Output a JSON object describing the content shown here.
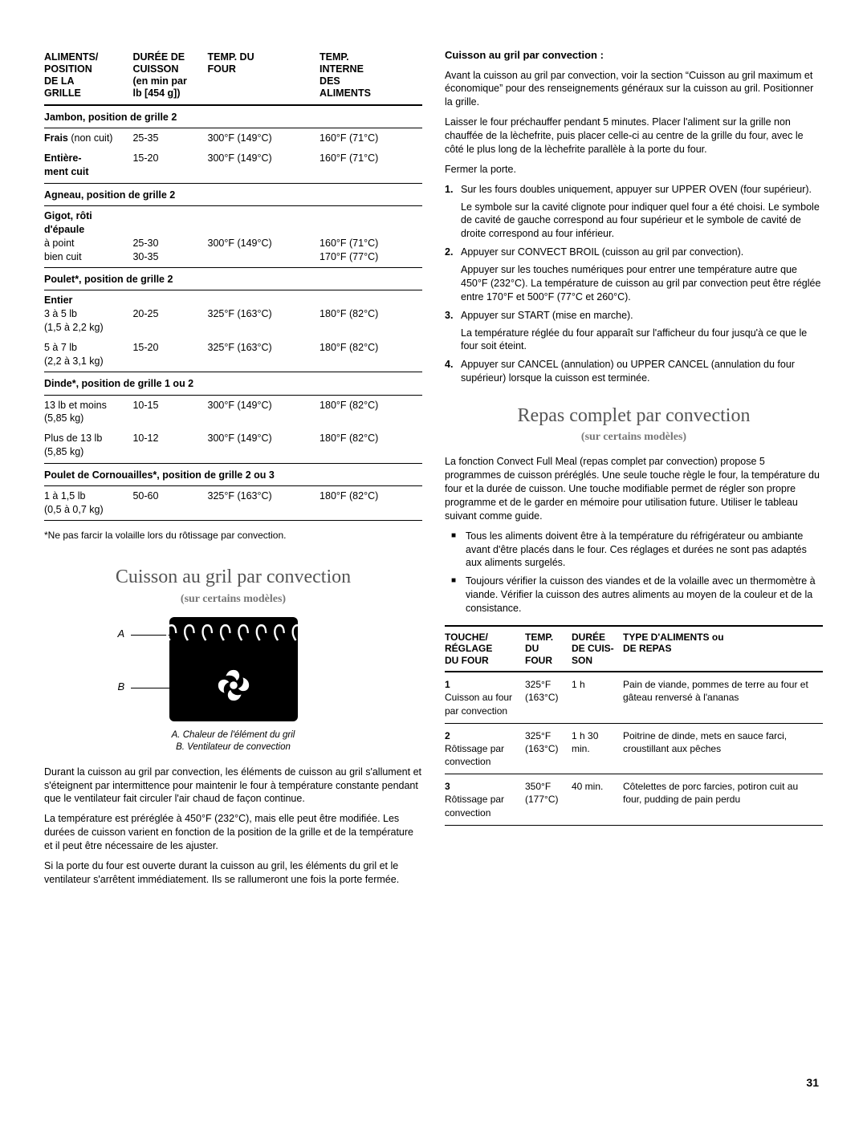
{
  "table1": {
    "headers": {
      "c0": "ALIMENTS/\nPOSITION\nDE LA\nGRILLE",
      "c1": "DURÉE DE\nCUISSON\n(en min par\nlb [454 g])",
      "c2": "TEMP. DU\nFOUR",
      "c3": "TEMP.\nINTERNE\nDES\nALIMENTS"
    },
    "sections": [
      {
        "title": "Jambon, position de grille 2",
        "rows": [
          {
            "c0": "<b>Frais</b> (non cuit)",
            "c1": "25-35",
            "c2": "300°F (149°C)",
            "c3": "160°F (71°C)"
          },
          {
            "c0": "<b>Entière-<br>ment cuit</b>",
            "c1": "15-20",
            "c2": "300°F (149°C)",
            "c3": "160°F (71°C)"
          }
        ]
      },
      {
        "title": "Agneau, position de grille 2",
        "rows": [
          {
            "c0": "<b>Gigot, rôti d'épaule</b><br>à point<br>bien cuit",
            "c1": "<br><br>25-30<br>30-35",
            "c2": "<br><br>300°F (149°C)",
            "c3": "<br><br>160°F (71°C)<br>170°F (77°C)"
          }
        ]
      },
      {
        "title": "Poulet*, position de grille 2",
        "rows": [
          {
            "c0": "<b>Entier</b><br>3 à 5 lb<br>(1,5 à 2,2 kg)",
            "c1": "<br>20-25",
            "c2": "<br>325°F (163°C)",
            "c3": "<br>180°F (82°C)"
          },
          {
            "c0": "5 à 7 lb<br>(2,2 à 3,1 kg)",
            "c1": "15-20",
            "c2": "325°F (163°C)",
            "c3": "180°F (82°C)"
          }
        ]
      },
      {
        "title": "Dinde*, position de grille 1 ou 2",
        "rows": [
          {
            "c0": "13 lb et moins<br>(5,85 kg)",
            "c1": "10-15",
            "c2": "300°F (149°C)",
            "c3": "180°F (82°C)"
          },
          {
            "c0": "Plus de 13 lb<br>(5,85 kg)",
            "c1": "10-12",
            "c2": "300°F (149°C)",
            "c3": "180°F (82°C)"
          }
        ]
      },
      {
        "title": "Poulet de Cornouailles*, position de grille 2 ou 3",
        "rows": [
          {
            "c0": "1 à 1,5 lb<br>(0,5 à 0,7 kg)",
            "c1": "50-60",
            "c2": "325°F (163°C)",
            "c3": "180°F (82°C)"
          }
        ]
      }
    ]
  },
  "footnote": "*Ne pas farcir la volaille lors du rôtissage par convection.",
  "h_cuisson": "Cuisson au gril par convection",
  "sub_models": "(sur certains modèles)",
  "diagram": {
    "labelA": "A",
    "labelB": "B",
    "captionA": "A. Chaleur de l'élément du gril",
    "captionB": "B. Ventilateur de convection"
  },
  "paras_left": [
    "Durant la cuisson au gril par convection, les éléments de cuisson au gril s'allument et s'éteignent par intermittence pour maintenir le four à température constante pendant que le ventilateur fait circuler l'air chaud de façon continue.",
    "La température est préréglée à 450°F (232°C), mais elle peut être modifiée. Les durées de cuisson varient en fonction de la position de la grille et de la température et il peut être nécessaire de les ajuster.",
    "Si la porte du four est ouverte durant la cuisson au gril, les éléments du gril et le ventilateur s'arrêtent immédiatement. Ils se rallumeront une fois la porte fermée."
  ],
  "right": {
    "h4": "Cuisson au gril par convection :",
    "intro1": "Avant la cuisson au gril par convection, voir la section “Cuisson au gril maximum et économique” pour des renseignements généraux sur la cuisson au gril. Positionner la grille.",
    "intro2": "Laisser le four préchauffer pendant 5 minutes. Placer l'aliment sur la grille non chauffée de la lèchefrite, puis placer celle-ci au centre de la grille du four, avec le côté le plus long de la lèchefrite parallèle à la porte du four.",
    "intro3": "Fermer la porte.",
    "steps": [
      {
        "n": "1.",
        "txt": "Sur les fours doubles uniquement, appuyer sur UPPER OVEN (four supérieur).",
        "extra": "Le symbole sur la cavité clignote pour indiquer quel four a été choisi. Le symbole de cavité de gauche correspond au four supérieur et le symbole de cavité de droite correspond au four inférieur."
      },
      {
        "n": "2.",
        "txt": "Appuyer sur CONVECT BROIL (cuisson au gril par convection).",
        "extra": "Appuyer sur les touches numériques pour entrer une température autre que 450°F (232°C). La température de cuisson au gril par convection peut être réglée entre 170°F et 500°F (77°C et 260°C)."
      },
      {
        "n": "3.",
        "txt": "Appuyer sur START (mise en marche).",
        "extra": "La température réglée du four apparaît sur l'afficheur du four jusqu'à ce que le four soit éteint."
      },
      {
        "n": "4.",
        "txt": "Appuyer sur CANCEL (annulation) ou UPPER CANCEL (annulation du four supérieur) lorsque la cuisson est terminée."
      }
    ]
  },
  "h_repas": "Repas complet par convection",
  "repas_intro": "La fonction Convect Full Meal (repas complet par convection) propose 5 programmes de cuisson préréglés. Une seule touche règle le four, la température du four et la durée de cuisson. Une touche modifiable permet de régler son propre programme et de le garder en mémoire pour utilisation future. Utiliser le tableau suivant comme guide.",
  "repas_bullets": [
    "Tous les aliments doivent être à la température du réfrigérateur ou ambiante avant d'être placés dans le four. Ces réglages et durées ne sont pas adaptés aux aliments surgelés.",
    "Toujours vérifier la cuisson des viandes et de la volaille avec un thermomètre à viande. Vérifier la cuisson des autres aliments au moyen de la couleur et de la consistance."
  ],
  "table2": {
    "headers": {
      "c0": "TOUCHE/\nRÉGLAGE\nDU FOUR",
      "c1": "TEMP.\nDU\nFOUR",
      "c2": "DURÉE\nDE CUIS-\nSON",
      "c3": "TYPE D'ALIMENTS ou\nDE REPAS"
    },
    "rows": [
      {
        "c0": "<b>1</b><br>Cuisson au four par convection",
        "c1": "325°F<br>(163°C)",
        "c2": "1 h",
        "c3": "Pain de viande, pommes de terre au four et gâteau renversé à l'ananas"
      },
      {
        "c0": "<b>2</b><br>Rôtissage par convection",
        "c1": "325°F<br>(163°C)",
        "c2": "1 h 30 min.",
        "c3": "Poitrine de dinde, mets en sauce farci, croustillant aux pêches"
      },
      {
        "c0": "<b>3</b><br>Rôtissage par convection",
        "c1": "350°F<br>(177°C)",
        "c2": "40 min.",
        "c3": "Côtelettes de porc farcies, potiron cuit au four, pudding de pain perdu"
      }
    ]
  },
  "pageNum": "31"
}
